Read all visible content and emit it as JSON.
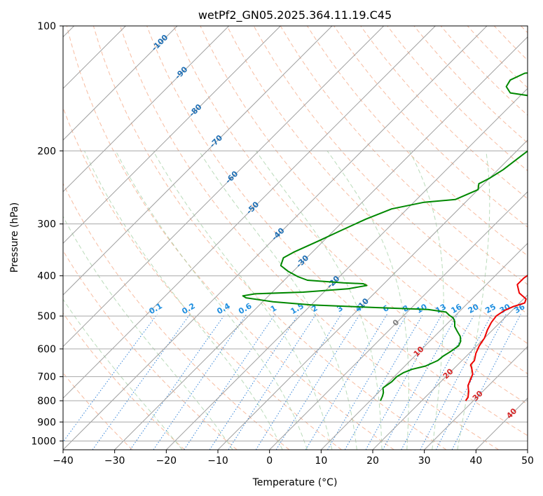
{
  "chart_data": {
    "type": "skew-t",
    "title": "wetPf2_GN05.2025.364.11.19.C45",
    "xlabel": "Temperature (°C)",
    "ylabel": "Pressure (hPa)",
    "xlim": [
      -40,
      50
    ],
    "ylim": [
      1050,
      100
    ],
    "y_scale": "log",
    "grid": true,
    "x_ticks": [
      -40,
      -30,
      -20,
      -10,
      0,
      10,
      20,
      30,
      40,
      50
    ],
    "y_ticks": [
      100,
      200,
      300,
      400,
      500,
      600,
      700,
      800,
      900,
      1000
    ],
    "isotherm_labels": [
      {
        "t": -100,
        "p": 110
      },
      {
        "t": -90,
        "p": 130
      },
      {
        "t": -80,
        "p": 160
      },
      {
        "t": -70,
        "p": 190
      },
      {
        "t": -60,
        "p": 232
      },
      {
        "t": -50,
        "p": 275
      },
      {
        "t": -40,
        "p": 318
      },
      {
        "t": -30,
        "p": 370
      },
      {
        "t": -20,
        "p": 415
      },
      {
        "t": -10,
        "p": 470
      },
      {
        "t": 0,
        "p": 520
      },
      {
        "t": 10,
        "p": 610
      },
      {
        "t": 20,
        "p": 690
      },
      {
        "t": 30,
        "p": 780
      },
      {
        "t": 40,
        "p": 860
      }
    ],
    "mixing_ratio_labels": [
      "0.1",
      "0.2",
      "0.4",
      "0.6",
      "1",
      "1.5",
      "2",
      "3",
      "4",
      "6",
      "8",
      "10",
      "13",
      "16",
      "20",
      "25",
      "30",
      "36"
    ],
    "series": [
      {
        "color": "#ee0000",
        "points": [
          [
            0,
            100
          ],
          [
            0.5,
            112
          ],
          [
            1.8,
            125
          ],
          [
            2.4,
            133
          ],
          [
            1.5,
            142
          ],
          [
            -0.3,
            153
          ],
          [
            -0.2,
            166
          ],
          [
            0.5,
            178
          ],
          [
            1.5,
            191
          ],
          [
            2.5,
            203
          ],
          [
            3.5,
            216
          ],
          [
            4.5,
            231
          ],
          [
            5.5,
            248
          ],
          [
            6.5,
            265
          ],
          [
            8.5,
            285
          ],
          [
            10,
            305
          ],
          [
            11.5,
            325
          ],
          [
            13,
            345
          ],
          [
            14.5,
            362
          ],
          [
            15.5,
            378
          ],
          [
            16.5,
            392
          ],
          [
            16,
            405
          ],
          [
            16,
            420
          ],
          [
            18,
            440
          ],
          [
            20.5,
            455
          ],
          [
            21,
            465
          ],
          [
            19.5,
            474
          ],
          [
            18.5,
            485
          ],
          [
            18,
            500
          ],
          [
            18.3,
            518
          ],
          [
            19,
            540
          ],
          [
            20,
            565
          ],
          [
            20.5,
            590
          ],
          [
            21.3,
            615
          ],
          [
            22.4,
            640
          ],
          [
            22.5,
            655
          ],
          [
            23.5,
            670
          ],
          [
            24.7,
            690
          ],
          [
            25.3,
            710
          ],
          [
            26,
            735
          ],
          [
            27.3,
            760
          ],
          [
            28.3,
            785
          ],
          [
            28.5,
            800
          ]
        ]
      },
      {
        "color": "#008800",
        "points": [
          [
            0,
            100
          ],
          [
            0,
            106
          ],
          [
            -0.5,
            111
          ],
          [
            -3,
            118
          ],
          [
            -8,
            124
          ],
          [
            -13,
            127
          ],
          [
            -19,
            128.5
          ],
          [
            -23.5,
            130
          ],
          [
            -25,
            135
          ],
          [
            -24.5,
            140
          ],
          [
            -22.5,
            145
          ],
          [
            -17,
            148
          ],
          [
            -12,
            152
          ],
          [
            -9,
            160
          ],
          [
            -8.3,
            170
          ],
          [
            -7,
            182
          ],
          [
            -7.5,
            194
          ],
          [
            -8.2,
            206
          ],
          [
            -9,
            222
          ],
          [
            -10,
            233
          ],
          [
            -11,
            240
          ],
          [
            -10,
            248
          ],
          [
            -12.5,
            262
          ],
          [
            -18,
            266
          ],
          [
            -23,
            276
          ],
          [
            -26,
            292
          ],
          [
            -28.5,
            310
          ],
          [
            -31,
            330
          ],
          [
            -33.5,
            350
          ],
          [
            -34.5,
            362
          ],
          [
            -33.5,
            378
          ],
          [
            -31,
            390
          ],
          [
            -28,
            402
          ],
          [
            -25.5,
            410
          ],
          [
            -18,
            416
          ],
          [
            -14,
            418
          ],
          [
            -13,
            422
          ],
          [
            -16,
            430
          ],
          [
            -24,
            438
          ],
          [
            -33,
            442
          ],
          [
            -35,
            447
          ],
          [
            -34,
            452
          ],
          [
            -28,
            462
          ],
          [
            -20,
            470
          ],
          [
            -7,
            477
          ],
          [
            3.5,
            482
          ],
          [
            7.5,
            489
          ],
          [
            8.8,
            498
          ],
          [
            10,
            505
          ],
          [
            11,
            515
          ],
          [
            12,
            530
          ],
          [
            13.5,
            545
          ],
          [
            15,
            560
          ],
          [
            16,
            575
          ],
          [
            16.5,
            590
          ],
          [
            16,
            610
          ],
          [
            15.5,
            625
          ],
          [
            15.3,
            640
          ],
          [
            14,
            660
          ],
          [
            12,
            672
          ],
          [
            11,
            685
          ],
          [
            10.5,
            700
          ],
          [
            10.5,
            720
          ],
          [
            10,
            745
          ],
          [
            11,
            765
          ],
          [
            11.5,
            780
          ],
          [
            12,
            800
          ]
        ]
      }
    ]
  }
}
